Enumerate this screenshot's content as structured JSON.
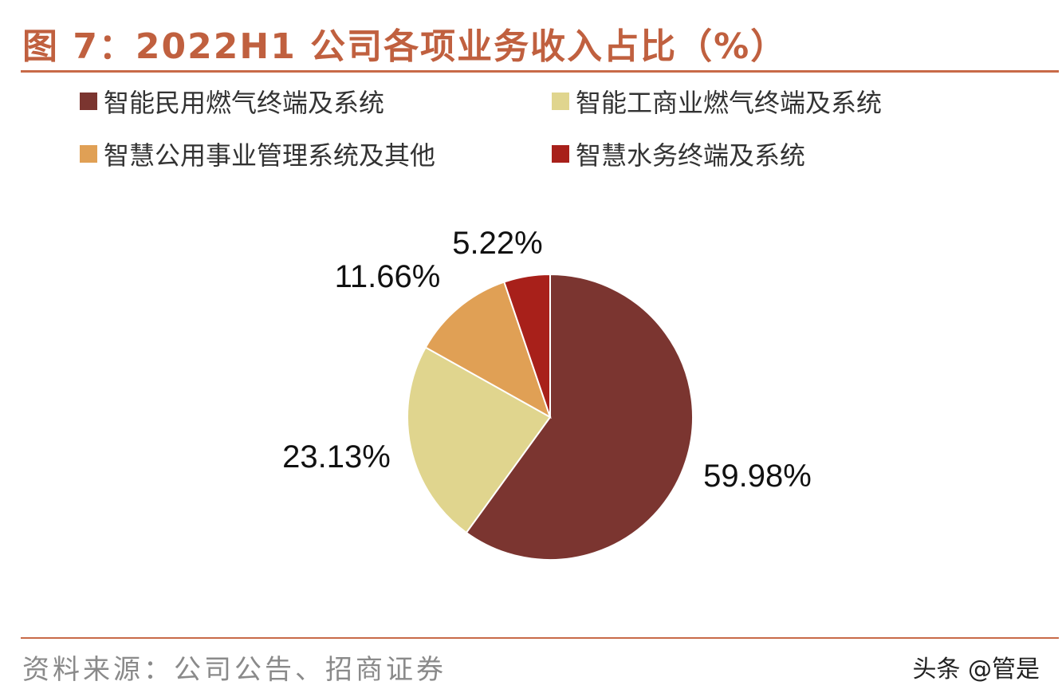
{
  "title": "图 7：2022H1 公司各项业务收入占比（%）",
  "source": "资料来源：公司公告、招商证券",
  "watermark": "头条 @管是",
  "chart_data": {
    "type": "pie",
    "title": "图 7：2022H1 公司各项业务收入占比（%）",
    "categories": [
      "智能民用燃气终端及系统",
      "智能工商业燃气终端及系统",
      "智慧公用事业管理系统及其他",
      "智慧水务终端及系统"
    ],
    "values": [
      59.98,
      23.13,
      11.66,
      5.22
    ],
    "labels": [
      "59.98%",
      "23.13%",
      "11.66%",
      "5.22%"
    ],
    "colors": [
      "#7b3530",
      "#e0d58e",
      "#e0a055",
      "#a8201a"
    ],
    "legend_position": "top"
  }
}
